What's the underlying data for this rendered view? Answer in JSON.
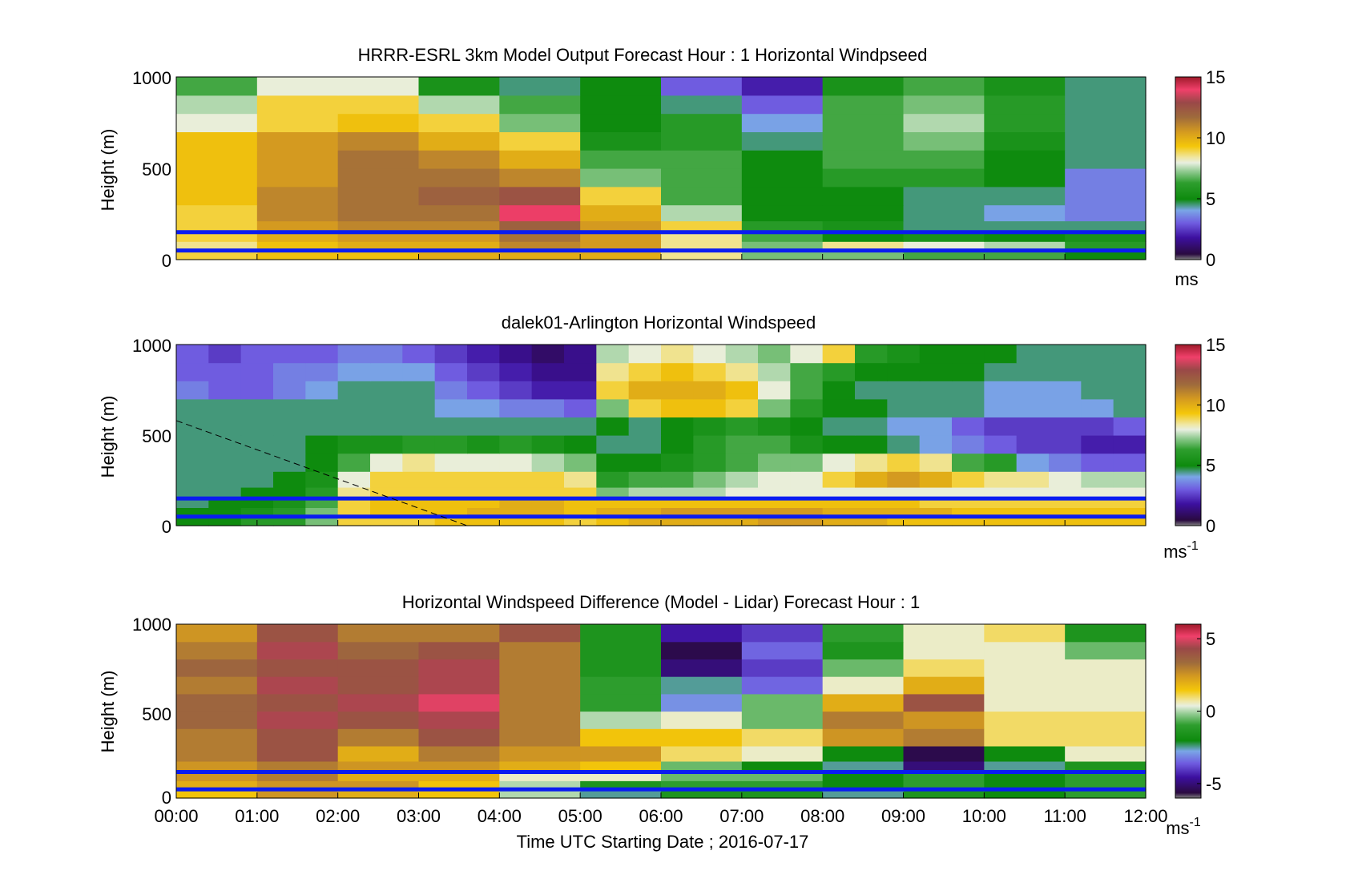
{
  "figure": {
    "xlabel": "Time UTC  Starting Date ; 2016-07-17",
    "x_ticks": [
      "00:00",
      "01:00",
      "02:00",
      "03:00",
      "04:00",
      "05:00",
      "06:00",
      "07:00",
      "08:00",
      "09:00",
      "10:00",
      "11:00",
      "12:00"
    ]
  },
  "chart_data": [
    {
      "type": "heatmap",
      "title": "HRRR-ESRL 3km Model Output   Forecast Hour : 1 Horizontal Windpseed",
      "ylabel": "Height (m)",
      "y_ticks": [
        "0",
        "500",
        "1000"
      ],
      "xlim": [
        0,
        12
      ],
      "ylim": [
        0,
        1000
      ],
      "colorbar": {
        "ticks": [
          "0",
          "5",
          "10",
          "15"
        ],
        "tick_values": [
          0,
          5,
          10,
          15
        ],
        "range": [
          0,
          15
        ],
        "unit": "ms",
        "unit_sup": ""
      },
      "reference_lines_m": [
        50,
        150
      ],
      "heights_m": [
        25,
        75,
        125,
        175,
        250,
        350,
        450,
        550,
        650,
        750,
        850,
        950
      ],
      "values": [
        [
          9,
          9.5,
          9.5,
          10,
          10,
          10,
          8.5,
          7,
          7,
          6.5,
          6.5,
          5
        ],
        [
          8.5,
          9.5,
          10,
          10,
          11,
          10.5,
          8.5,
          7,
          8.5,
          8,
          7.5,
          6
        ],
        [
          9,
          10,
          10.5,
          10.5,
          11.5,
          10.5,
          8.5,
          6.5,
          5,
          5.5,
          5,
          5.5
        ],
        [
          9,
          10.5,
          11,
          11,
          12,
          10.5,
          9,
          6,
          5.5,
          4.5,
          4.5,
          4.5
        ],
        [
          9,
          11,
          11.5,
          11.5,
          14,
          10,
          7.5,
          5,
          5,
          4.5,
          4,
          3.5
        ],
        [
          9.5,
          11,
          11.5,
          12,
          12.5,
          9,
          6.5,
          5,
          5,
          4.5,
          4.5,
          3.5
        ],
        [
          9.5,
          10.5,
          11.5,
          11.5,
          11,
          7,
          6.5,
          5,
          6,
          6,
          5,
          3.5
        ],
        [
          9.5,
          10.5,
          11.5,
          11,
          10,
          6.5,
          6.5,
          5,
          6.5,
          6.5,
          5,
          4.5
        ],
        [
          9.5,
          10.5,
          11,
          10,
          9,
          5.5,
          6,
          4.5,
          6.5,
          7,
          5.5,
          4.5
        ],
        [
          8,
          9,
          9.5,
          9,
          7,
          5,
          6,
          4,
          6.5,
          7.5,
          6,
          4.5
        ],
        [
          7.5,
          9,
          9,
          7.5,
          6.5,
          5,
          4.5,
          3,
          6.5,
          7,
          6,
          4.5
        ],
        [
          6.5,
          8,
          8,
          5.5,
          4.5,
          5,
          3,
          2,
          5.5,
          6.5,
          5.5,
          4.5
        ]
      ]
    },
    {
      "type": "heatmap",
      "title": "dalek01-Arlington  Horizontal Windspeed",
      "ylabel": "Height (m)",
      "y_ticks": [
        "0",
        "500",
        "1000"
      ],
      "xlim": [
        0,
        12
      ],
      "ylim": [
        0,
        1000
      ],
      "colorbar": {
        "ticks": [
          "0",
          "5",
          "10",
          "15"
        ],
        "tick_values": [
          0,
          5,
          10,
          15
        ],
        "range": [
          0,
          15
        ],
        "unit": "ms",
        "unit_sup": "-1"
      },
      "reference_lines_m": [
        50,
        150
      ],
      "heights_m": [
        25,
        75,
        125,
        175,
        250,
        350,
        450,
        550,
        650,
        750,
        850,
        950
      ],
      "column_times_h": [
        0.2,
        0.6,
        1.0,
        1.4,
        1.8,
        2.2,
        2.6,
        3.0,
        3.4,
        3.8,
        4.2,
        4.6,
        5.0,
        5.4,
        5.8,
        6.2,
        6.6,
        7.0,
        7.4,
        7.8,
        8.2,
        8.6,
        9.0,
        9.4,
        9.8,
        10.2,
        10.6,
        11.0,
        11.4,
        11.8
      ],
      "values": [
        [
          5,
          5,
          6,
          6,
          7,
          9,
          9,
          9,
          9.5,
          9.5,
          9.5,
          9.5,
          9,
          9.5,
          10,
          10,
          10,
          10,
          10.5,
          10.5,
          10,
          10,
          9.5,
          9.5,
          9.5,
          9.5,
          9.5,
          9.5,
          9.5,
          9.5
        ],
        [
          5,
          5,
          5.5,
          6,
          7,
          9,
          9.5,
          9.5,
          9.5,
          10,
          10,
          10,
          9.5,
          10,
          10,
          10.5,
          10.5,
          10.5,
          10.5,
          10.5,
          10,
          10,
          10,
          10,
          9.5,
          9.5,
          9.5,
          9.5,
          9.5,
          9.5
        ],
        [
          4.5,
          5,
          5,
          5.5,
          6.5,
          9,
          9.5,
          9.5,
          9.5,
          9.5,
          10,
          10,
          9.5,
          9.5,
          9.5,
          9.5,
          9.5,
          9.5,
          9.5,
          9.5,
          9.5,
          9.5,
          9.5,
          9,
          9,
          9,
          9,
          9,
          9,
          9
        ],
        [
          4.5,
          4.5,
          5,
          5,
          6,
          8.5,
          9,
          9,
          9,
          9,
          9,
          9,
          9,
          7,
          7.5,
          7.5,
          7.5,
          8,
          8,
          8,
          8,
          8,
          8,
          8,
          8,
          8,
          8,
          8,
          8,
          8
        ],
        [
          4.5,
          4.5,
          4.5,
          5,
          5.5,
          8,
          9,
          9,
          9,
          9,
          9,
          9,
          8.5,
          6,
          6.5,
          6.5,
          7,
          7.5,
          8,
          8,
          9,
          10,
          10.5,
          10,
          9,
          8.5,
          8.5,
          8,
          7.5,
          7.5
        ],
        [
          4.5,
          4.5,
          4.5,
          4.5,
          5,
          6.5,
          8,
          8.5,
          8,
          8,
          8,
          7.5,
          7,
          5,
          5,
          5.5,
          6,
          6.5,
          7,
          7,
          8,
          8.5,
          9,
          8.5,
          6.5,
          6,
          4,
          3.5,
          3,
          3
        ],
        [
          4.5,
          4.5,
          4.5,
          4.5,
          5,
          5.5,
          5.5,
          6,
          6,
          5.5,
          6,
          5.5,
          5,
          4.5,
          4.5,
          5,
          6,
          6.5,
          6.5,
          5.5,
          5,
          5,
          4.5,
          4,
          3.5,
          3,
          2.5,
          2.5,
          2,
          2
        ],
        [
          4.5,
          4.5,
          4.5,
          4.5,
          4.5,
          4.5,
          4.5,
          4.5,
          4.5,
          4.5,
          4.5,
          4.5,
          4.5,
          5,
          4.5,
          5,
          5.5,
          6,
          5.5,
          5,
          4.5,
          4.5,
          4,
          4,
          3,
          2.5,
          2.5,
          2.5,
          2.5,
          3
        ],
        [
          4.5,
          4.5,
          4.5,
          4.5,
          4.5,
          4.5,
          4.5,
          4.5,
          4,
          4,
          3.5,
          3.5,
          3,
          7,
          9,
          9.5,
          9.5,
          9,
          7,
          6,
          5,
          5,
          4.5,
          4.5,
          4.5,
          4,
          4,
          4,
          4,
          4.5
        ],
        [
          3.5,
          3,
          3,
          3.5,
          4,
          4.5,
          4.5,
          4.5,
          3.5,
          3,
          2.5,
          2,
          2,
          9,
          10,
          10,
          10,
          9.5,
          8,
          6.5,
          5,
          4.5,
          4.5,
          4.5,
          4.5,
          4,
          4,
          4,
          4.5,
          4.5
        ],
        [
          3,
          3,
          3,
          3.5,
          3.5,
          4,
          4,
          4,
          3,
          2.5,
          2,
          1.5,
          1.5,
          8.5,
          9,
          9.5,
          9,
          8.5,
          7.5,
          6.5,
          6,
          5,
          5,
          5,
          5,
          4.5,
          4.5,
          4.5,
          4.5,
          4.5
        ],
        [
          3,
          2.5,
          3,
          3,
          3,
          3.5,
          3.5,
          3,
          2.5,
          2,
          1.5,
          1,
          1.5,
          7.5,
          8,
          8.5,
          8,
          7.5,
          7,
          8,
          9,
          6,
          5.5,
          5,
          5,
          5,
          4.5,
          4.5,
          4.5,
          4.5
        ]
      ],
      "dashed_line": {
        "x": [
          0,
          3.6
        ],
        "y": [
          580,
          0
        ]
      }
    },
    {
      "type": "heatmap",
      "title": "Horizontal Windspeed Difference (Model - Lidar) Forecast Hour : 1",
      "ylabel": "Height (m)",
      "y_ticks": [
        "0",
        "500",
        "1000"
      ],
      "xlim": [
        0,
        12
      ],
      "ylim": [
        0,
        1000
      ],
      "colorbar": {
        "ticks": [
          "-5",
          "0",
          "5"
        ],
        "tick_values": [
          -5,
          0,
          5
        ],
        "range": [
          -6,
          6
        ],
        "unit": "ms",
        "unit_sup": "-1"
      },
      "reference_lines_m": [
        50,
        150
      ],
      "heights_m": [
        25,
        75,
        125,
        175,
        250,
        350,
        450,
        550,
        650,
        750,
        850,
        950
      ],
      "values": [
        [
          1.5,
          2.5,
          2,
          1.5,
          0,
          -2.5,
          -1.5,
          -1.5,
          -2.5,
          -1.5,
          -2,
          -1
        ],
        [
          2,
          2.5,
          2.5,
          1.5,
          0,
          -1.5,
          -1,
          -1,
          -2,
          -1,
          -2,
          -1
        ],
        [
          2.5,
          3,
          2,
          2,
          0.5,
          0.5,
          -0.5,
          -0.5,
          -2,
          -1,
          -2,
          -1
        ],
        [
          2.5,
          3,
          2.5,
          2.5,
          2,
          1.5,
          -0.5,
          -2,
          -2.5,
          -5,
          -2.5,
          -1.5
        ],
        [
          3,
          4,
          2,
          3,
          2.5,
          2.5,
          1,
          0.5,
          -2,
          -5.5,
          -2,
          0.5
        ],
        [
          3,
          4,
          3,
          4,
          3,
          1.5,
          1.5,
          1,
          2.5,
          3,
          1,
          1
        ],
        [
          3.5,
          4.5,
          4,
          4.5,
          3,
          0,
          0.5,
          -0.5,
          3,
          2.5,
          1,
          1
        ],
        [
          3.5,
          4,
          4.5,
          5,
          3,
          -1,
          -3,
          -0.5,
          2,
          4,
          0.5,
          0.5
        ],
        [
          3,
          4.5,
          4,
          4.5,
          3,
          -1,
          -2.5,
          -3.5,
          0.5,
          2,
          0.5,
          0.5
        ],
        [
          3.5,
          4,
          4,
          4.5,
          3,
          -1.5,
          -5,
          -4,
          -0.5,
          1,
          0.5,
          0.5
        ],
        [
          3,
          4.5,
          3.5,
          4,
          3,
          -1.5,
          -5.5,
          -3.5,
          -1.5,
          0.5,
          0.5,
          -0.5
        ],
        [
          2.5,
          4,
          3,
          3,
          4,
          -1.5,
          -4.5,
          -4,
          -1,
          0.5,
          1,
          -1.5
        ]
      ]
    }
  ]
}
